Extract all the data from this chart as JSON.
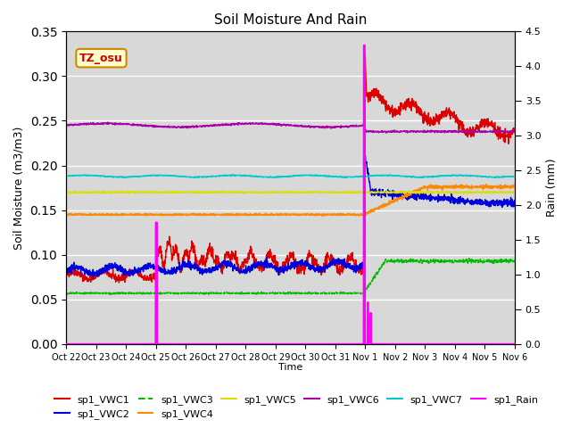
{
  "title": "Soil Moisture And Rain",
  "xlabel": "Time",
  "ylabel_left": "Soil Moisture (m3/m3)",
  "ylabel_right": "Rain (mm)",
  "station_label": "TZ_osu",
  "ylim_left": [
    0.0,
    0.35
  ],
  "ylim_right": [
    0.0,
    4.5
  ],
  "bg_color": "#d8d8d8",
  "x_tick_labels": [
    "Oct 22",
    "Oct 23",
    "Oct 24",
    "Oct 25",
    "Oct 26",
    "Oct 27",
    "Oct 28",
    "Oct 29",
    "Oct 30",
    "Oct 31",
    "Nov 1",
    "Nov 2",
    "Nov 3",
    "Nov 4",
    "Nov 5",
    "Nov 6"
  ],
  "vwc1_color": "#dd0000",
  "vwc2_color": "#0000dd",
  "vwc3_color": "#00bb00",
  "vwc4_color": "#ff8800",
  "vwc5_color": "#dddd00",
  "vwc6_color": "#aa00aa",
  "vwc7_color": "#00cccc",
  "rain_color": "#ff00ff",
  "grid_color": "#ffffff",
  "n_points": 2000,
  "t_max": 15.0,
  "rain1_t": 3.0,
  "rain1_val": 1.75,
  "rain2_t": 9.95,
  "rain2_val": 4.3,
  "rain3_t": 10.08,
  "rain3_val": 0.6,
  "rain4_t": 10.12,
  "rain4_val": 0.35,
  "rain5_t": 10.18,
  "rain5_val": 0.45
}
